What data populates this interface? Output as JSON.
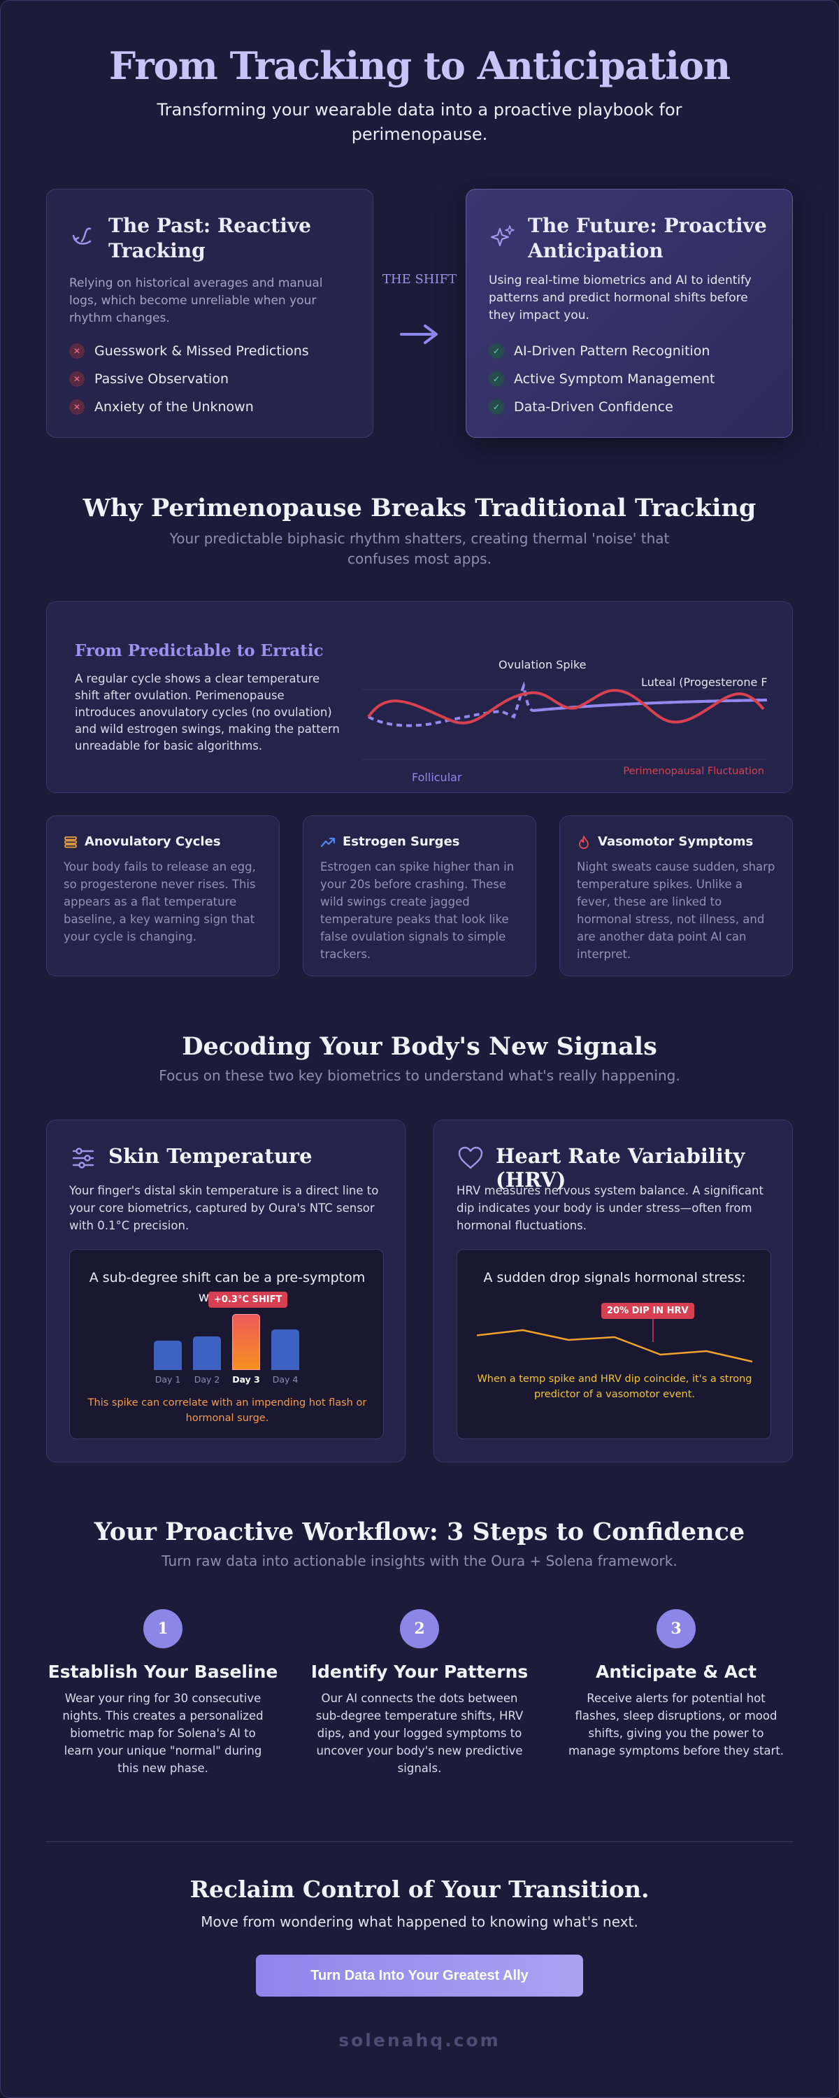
{
  "hero": {
    "title": "From Tracking to Anticipation",
    "subtitle": "Transforming your wearable data into a proactive playbook for perimenopause."
  },
  "past": {
    "title": "The Past: Reactive Tracking",
    "icon": "undo-arrow-icon",
    "text": "Relying on historical averages and manual logs, which become unreliable when your rhythm changes.",
    "items": [
      "Guesswork & Missed Predictions",
      "Passive Observation",
      "Anxiety of the Unknown"
    ]
  },
  "shift": {
    "label": "THE SHIFT"
  },
  "future": {
    "title": "The Future: Proactive Anticipation",
    "icon": "sparkles-icon",
    "text": "Using real-time biometrics and AI to identify patterns and predict hormonal shifts before they impact you.",
    "items": [
      "AI-Driven Pattern Recognition",
      "Active Symptom Management",
      "Data-Driven Confidence"
    ]
  },
  "why": {
    "title": "Why Perimenopause Breaks Traditional Tracking",
    "subtitle": "Your predictable biphasic rhythm shatters, creating thermal 'noise' that confuses most apps."
  },
  "erratic": {
    "title": "From Predictable to Erratic",
    "text": "A regular cycle shows a clear temperature shift after ovulation. Perimenopause introduces anovulatory cycles (no ovulation) and wild estrogen swings, making the pattern unreadable for basic algorithms.",
    "labels": {
      "spike": "Ovulation Spike",
      "luteal": "Luteal (Progesterone F",
      "follicular": "Follicular",
      "fluctuation": "Perimenopausal Fluctuation"
    },
    "colors": {
      "regular": "#8e86ea",
      "erratic": "#d8414f"
    }
  },
  "causes": [
    {
      "title": "Anovulatory Cycles",
      "icon": "stack-icon",
      "text": "Your body fails to release an egg, so progesterone never rises. This appears as a flat temperature baseline, a key warning sign that your cycle is changing."
    },
    {
      "title": "Estrogen Surges",
      "icon": "trend-up-icon",
      "text": "Estrogen can spike higher than in your 20s before crashing. These wild swings create jagged temperature peaks that look like false ovulation signals to simple trackers."
    },
    {
      "title": "Vasomotor Symptoms",
      "icon": "flame-icon",
      "text": "Night sweats cause sudden, sharp temperature spikes. Unlike a fever, these are linked to hormonal stress, not illness, and are another data point AI can interpret."
    }
  ],
  "signals": {
    "title": "Decoding Your Body's New Signals",
    "subtitle": "Focus on these two key biometrics to understand what's really happening."
  },
  "skin": {
    "title": "Skin Temperature",
    "icon": "sliders-icon",
    "text": "Your finger's distal skin temperature is a direct line to your core biometrics, captured by Oura's NTC sensor with 0.1°C precision.",
    "inner_title": "A sub-degree shift can be a pre-symptom warning:",
    "badge": "+0.3°C SHIFT",
    "days": [
      "Day 1",
      "Day 2",
      "Day 3",
      "Day 4"
    ],
    "levels": [
      0.52,
      0.6,
      1.0,
      0.72
    ],
    "note": "This spike can correlate with an impending hot flash or hormonal surge.",
    "colors": {
      "bar": "#3e62c4",
      "spike_top": "#ee5a5a",
      "spike_bottom": "#f7901f",
      "note": "#f39b50"
    }
  },
  "hrv": {
    "title": "Heart Rate Variability (HRV)",
    "icon": "heart-icon",
    "text": "HRV measures nervous system balance. A significant dip indicates your body is under stress—often from hormonal fluctuations.",
    "inner_title": "A sudden drop signals hormonal stress:",
    "badge": "20% DIP IN HRV",
    "trend": [
      0.55,
      0.7,
      0.42,
      0.5,
      0.0,
      0.1,
      -0.2
    ],
    "note": "When a temp spike and HRV dip coincide, it's a strong predictor of a vasomotor event.",
    "colors": {
      "line": "#f0a22b",
      "note": "#f5c530"
    }
  },
  "workflow": {
    "title": "Your Proactive Workflow: 3 Steps to Confidence",
    "subtitle": "Turn raw data into actionable insights with the Oura + Solena framework.",
    "steps": [
      {
        "num": "1",
        "title": "Establish Your Baseline",
        "text": "Wear your ring for 30 consecutive nights. This creates a personalized biometric map for Solena's AI to learn your unique \"normal\" during this new phase."
      },
      {
        "num": "2",
        "title": "Identify Your Patterns",
        "text": "Our AI connects the dots between sub-degree temperature shifts, HRV dips, and your logged symptoms to uncover your body's new predictive signals."
      },
      {
        "num": "3",
        "title": "Anticipate & Act",
        "text": "Receive alerts for potential hot flashes, sleep disruptions, or mood shifts, giving you the power to manage symptoms before they start."
      }
    ]
  },
  "cta": {
    "title": "Reclaim Control of Your Transition.",
    "subtitle": "Move from wondering what happened to knowing what's next.",
    "button": "Turn Data Into Your Greatest Ally"
  },
  "footer": {
    "domain": "solenahq.com"
  }
}
